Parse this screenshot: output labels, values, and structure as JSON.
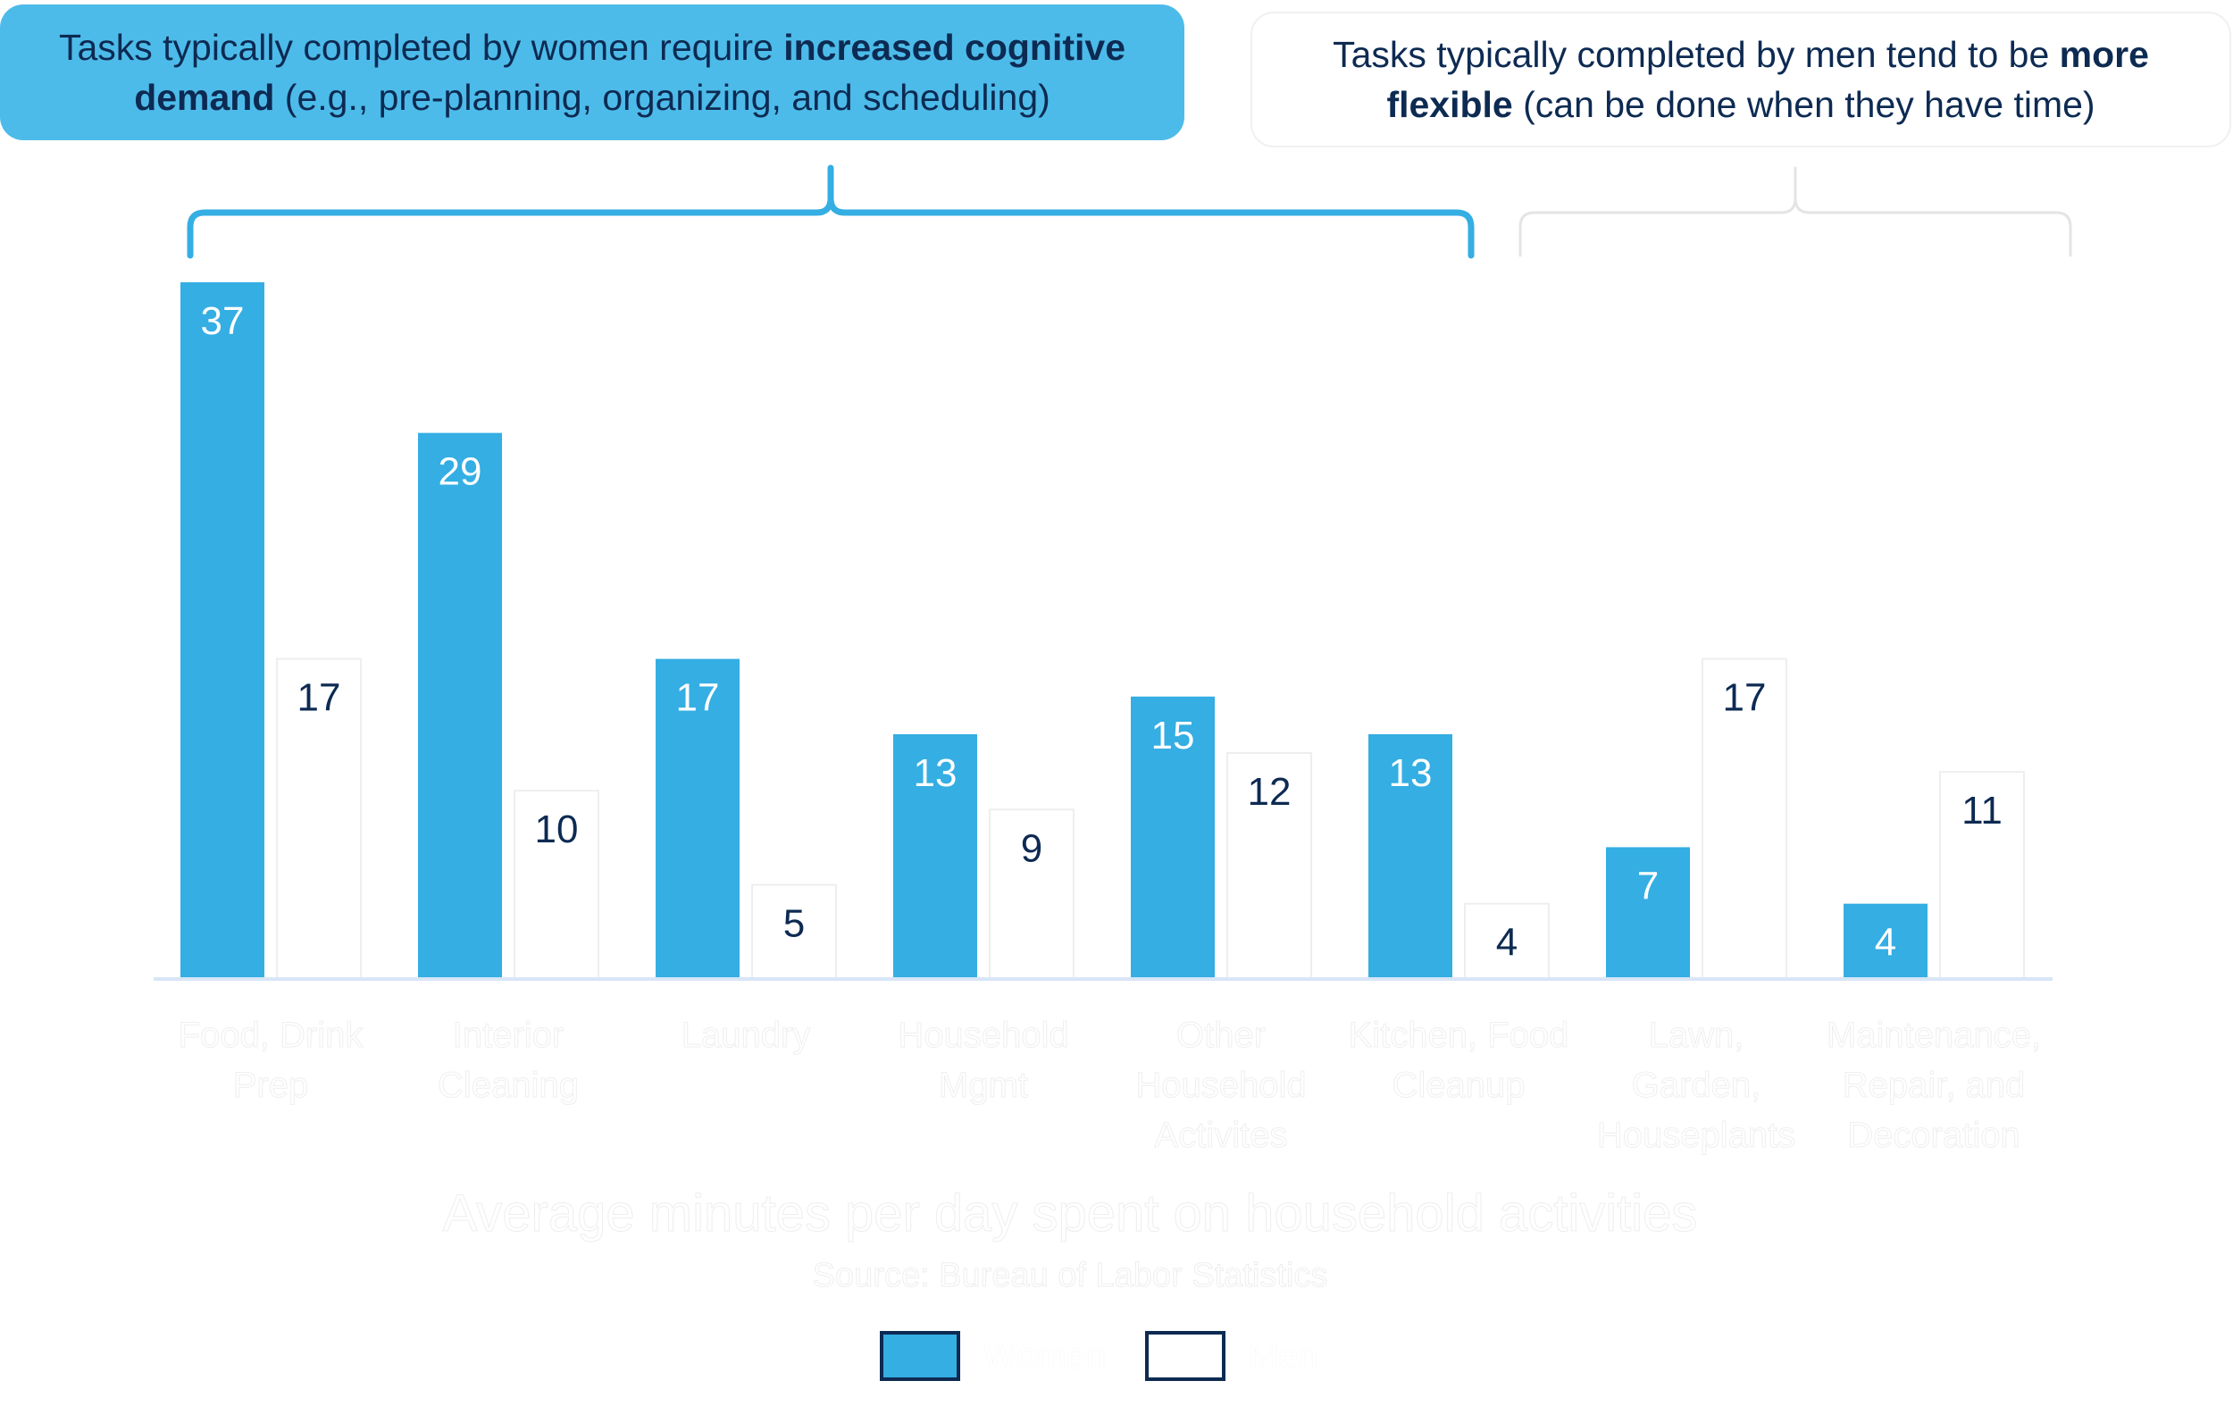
{
  "callouts": {
    "women": {
      "pre": "Tasks typically completed by women require ",
      "bold": "increased cognitive demand",
      "post": " (e.g., pre-planning, organizing, and scheduling)"
    },
    "men": {
      "pre": "Tasks typically completed by men tend to be ",
      "bold": "more flexible",
      "post": " (can be done when they have time)"
    }
  },
  "colors": {
    "women": "#34aee3",
    "men": "#ffffff",
    "navy": "#0d2a52",
    "callout_women_bg": "#4dbbe9",
    "axis": "#d8e6f6",
    "bracket_women": "#34aee3",
    "bracket_men": "#e4e4e4"
  },
  "legend": {
    "women": "Women",
    "men": "Men"
  },
  "chart_data": {
    "type": "bar",
    "title": "Average minutes per day spent on household activities",
    "subtitle": "Source: Bureau of Labor Statistics",
    "categories": [
      [
        "Food, Drink",
        "Prep"
      ],
      [
        "Interior",
        "Cleaning"
      ],
      [
        "Laundry"
      ],
      [
        "Household",
        "Mgmt"
      ],
      [
        "Other",
        "Household",
        "Activites"
      ],
      [
        "Kitchen, Food",
        "Cleanup"
      ],
      [
        "Lawn,",
        "Garden,",
        "Houseplants"
      ],
      [
        "Maintenance,",
        "Repair, and",
        "Decoration"
      ]
    ],
    "series": [
      {
        "name": "Women",
        "values": [
          37,
          29,
          17,
          13,
          15,
          13,
          7,
          4
        ]
      },
      {
        "name": "Men",
        "values": [
          17,
          10,
          5,
          9,
          12,
          4,
          17,
          11
        ]
      }
    ],
    "ylim": [
      0,
      37
    ],
    "grid": false,
    "legend_position": "bottom"
  }
}
